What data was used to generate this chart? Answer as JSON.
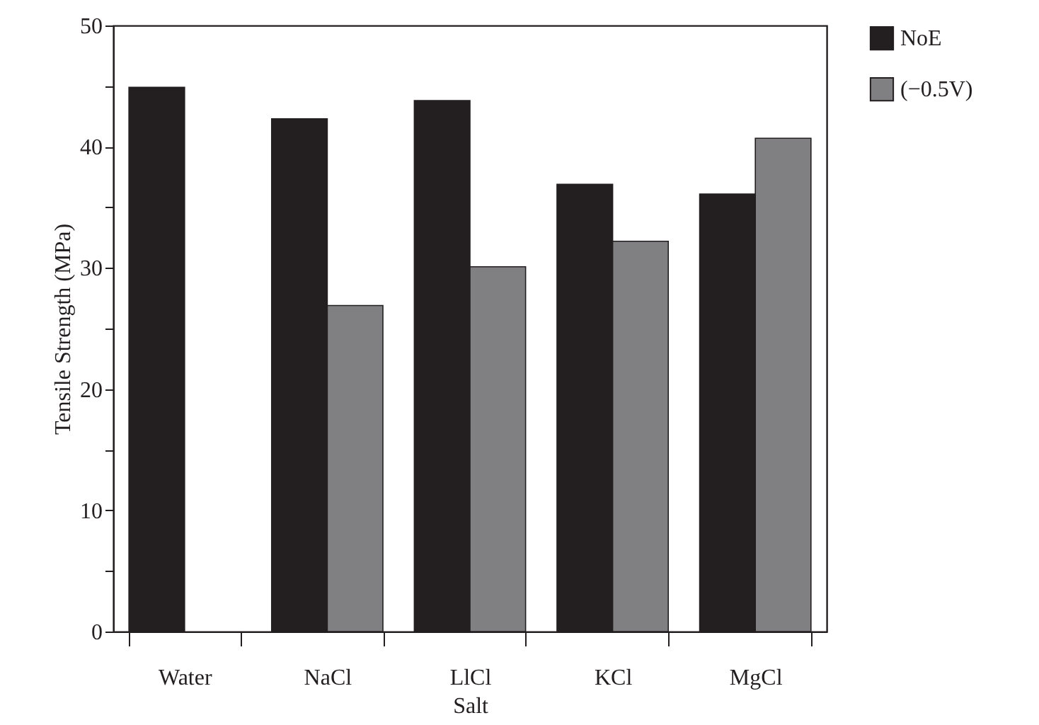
{
  "chart_data": {
    "type": "bar",
    "xlabel": "Salt",
    "ylabel": "Tensile Strength (MPa)",
    "categories": [
      "Water",
      "NaCl",
      "LlCl",
      "KCl",
      "MgCl"
    ],
    "series": [
      {
        "name": "NoE",
        "color": "#231f20",
        "values": [
          44.9,
          42.3,
          43.8,
          36.9,
          36.1
        ]
      },
      {
        "name": "(−0.5V)",
        "color": "#808083",
        "values": [
          null,
          26.9,
          30.1,
          32.2,
          40.7
        ]
      }
    ],
    "ylim": [
      0,
      50
    ],
    "yticks": [
      0,
      {
        "value": 5,
        "label": null
      },
      10,
      {
        "value": 15,
        "label": null
      },
      20,
      {
        "value": 25,
        "label": null
      },
      30,
      {
        "value": 35,
        "label": null
      },
      40,
      {
        "value": 45,
        "label": null
      },
      50
    ],
    "grid": false,
    "legend": "right"
  }
}
